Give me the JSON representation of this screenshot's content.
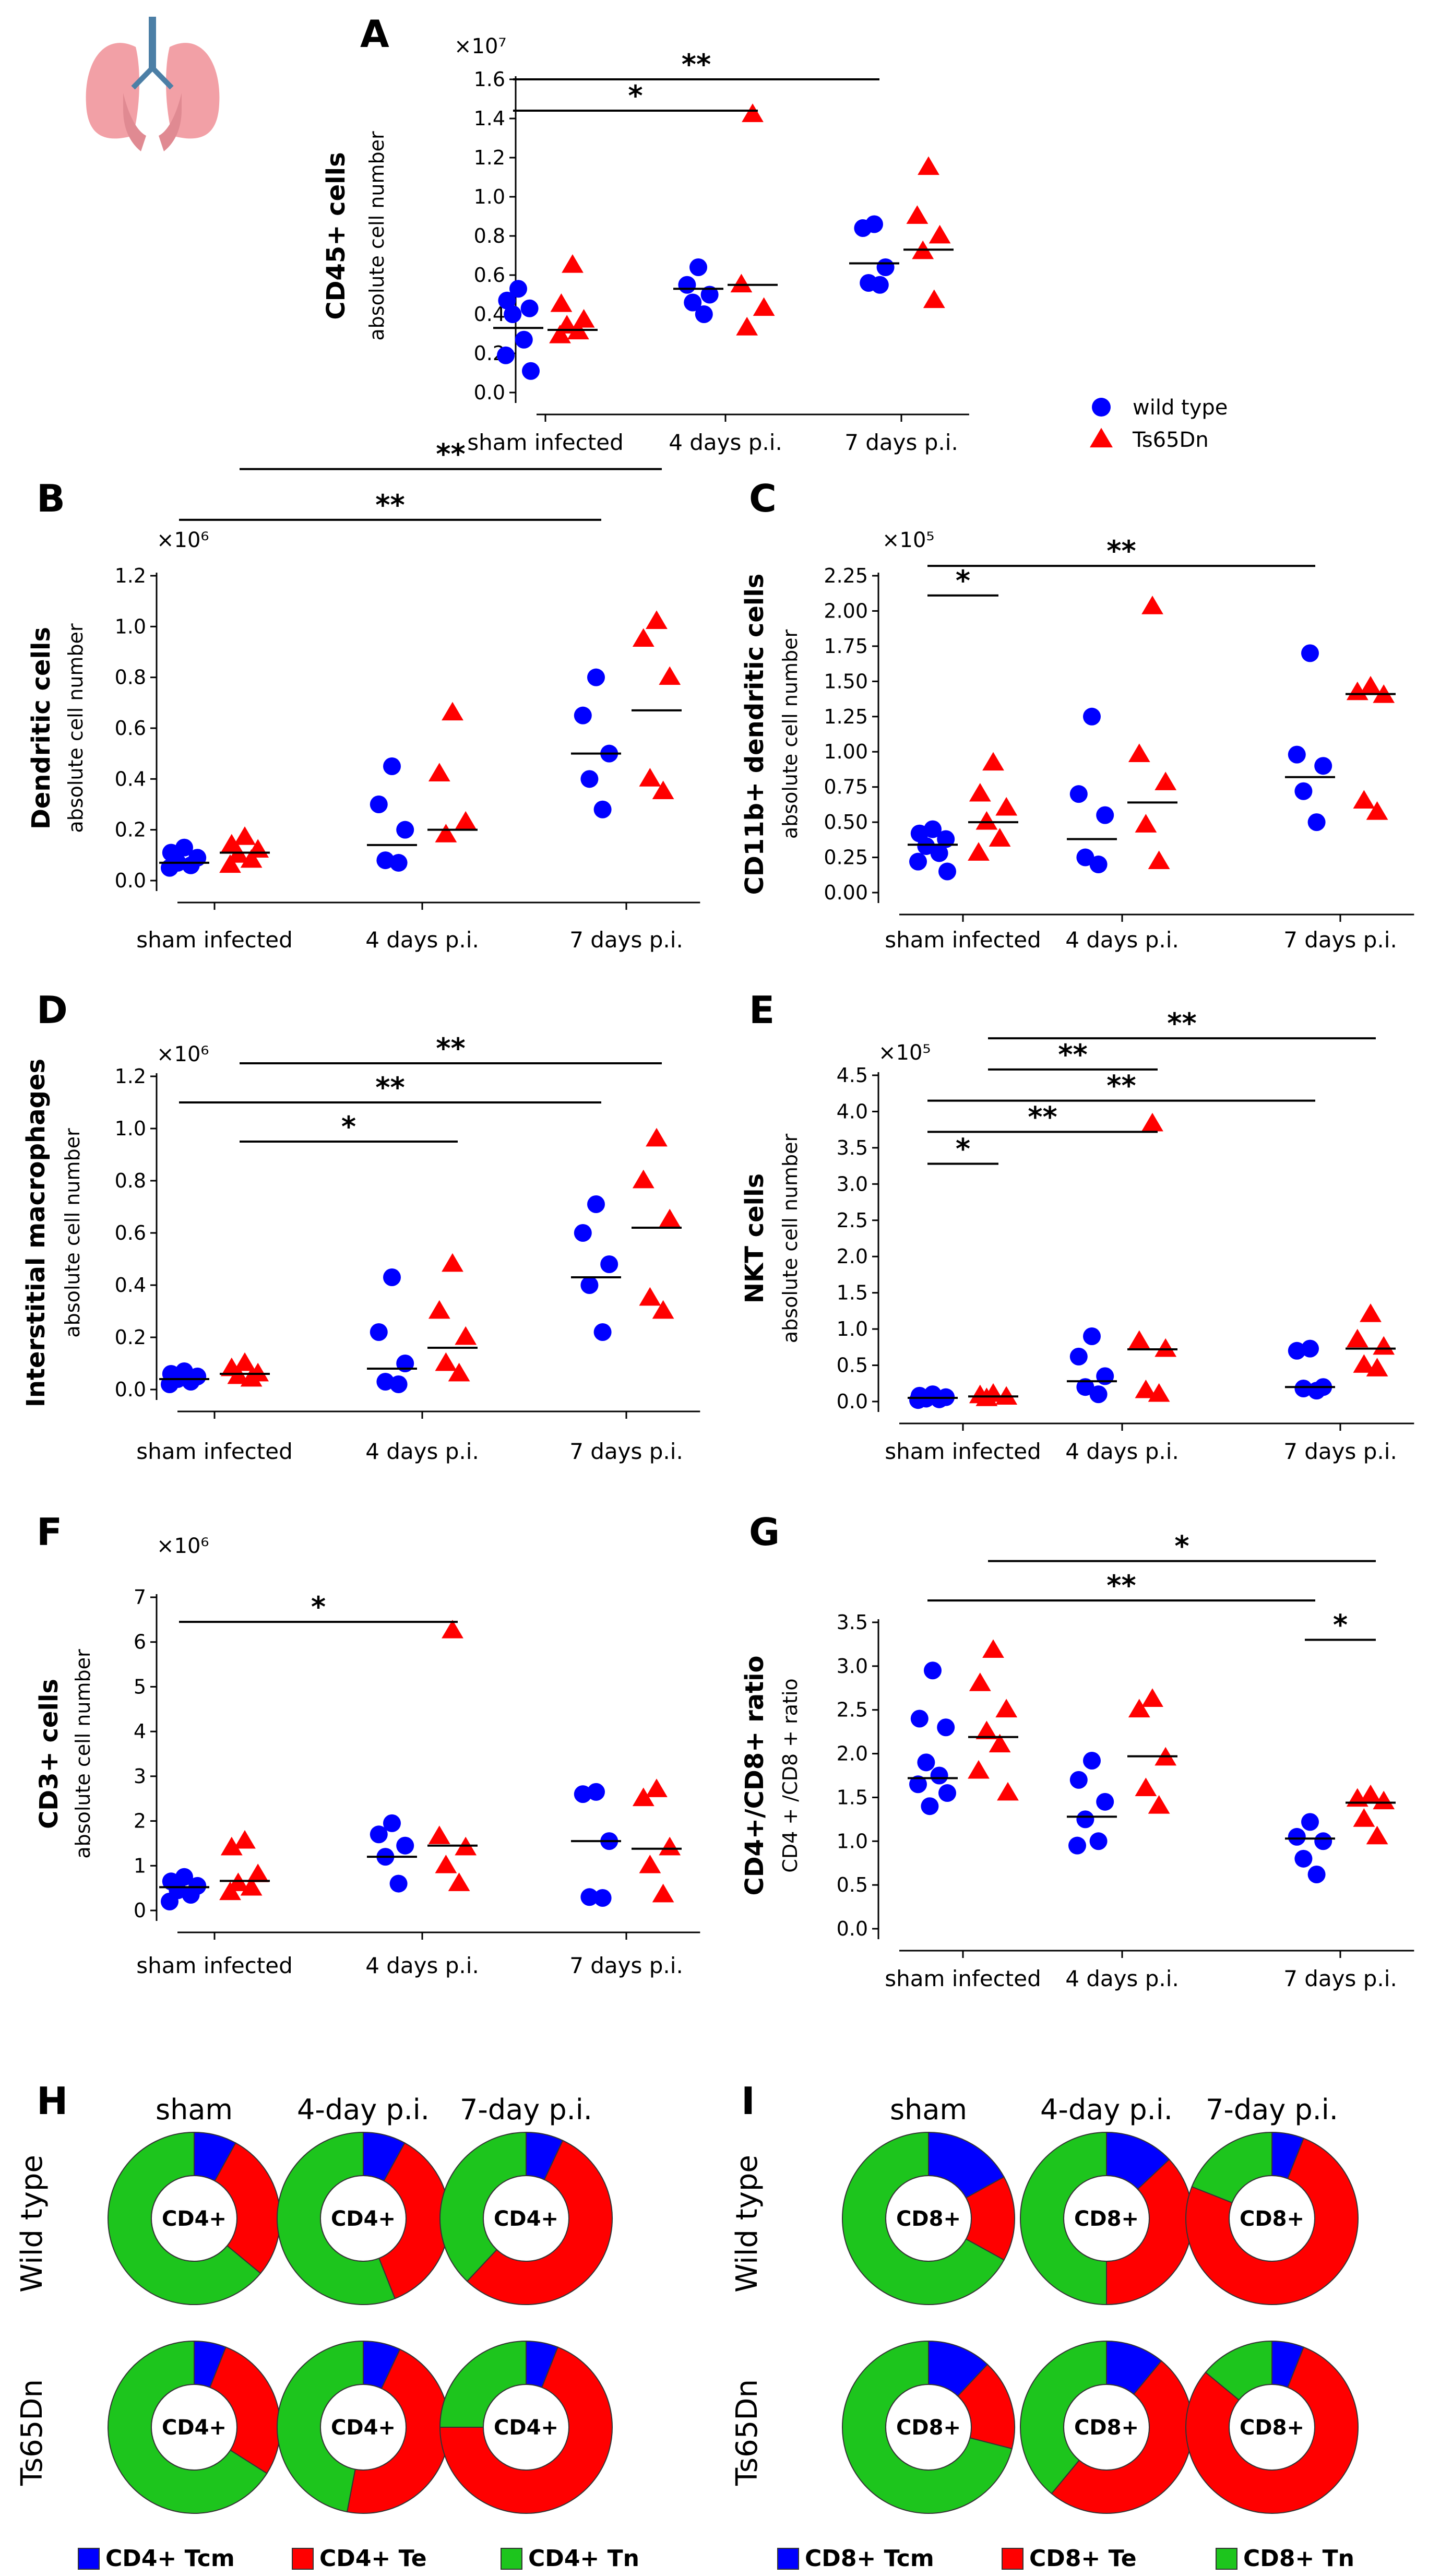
{
  "legend": {
    "entries": [
      {
        "label": "wild type",
        "color": "#0000FF",
        "marker": "circle"
      },
      {
        "label": "Ts65Dn",
        "color": "#FF0000",
        "marker": "triangle"
      }
    ]
  },
  "icons": {
    "organ": "lungs-icon"
  },
  "colors": {
    "wild_type": "#0000FF",
    "ts65dn": "#FF0000",
    "tcm": "#0000FF",
    "te": "#FF0000",
    "tn": "#1DC51D"
  },
  "chart_data": [
    {
      "panel": "A",
      "type": "scatter",
      "ylabel": "CD45+ cells",
      "ysublabel": "absolute cell number",
      "multiplier": "×10⁷",
      "ylim": [
        0,
        1.6
      ],
      "yticks": [
        "0.0",
        "0.2",
        "0.4",
        "0.6",
        "0.8",
        "1.0",
        "1.2",
        "1.4",
        "1.6"
      ],
      "categories": [
        "sham infected",
        "4 days p.i.",
        "7 days p.i."
      ],
      "series": [
        {
          "name": "wild type",
          "values": [
            [
              0.53,
              0.47,
              0.43,
              0.4,
              0.27,
              0.19,
              0.11
            ],
            [
              0.64,
              0.55,
              0.5,
              0.46,
              0.4
            ],
            [
              0.86,
              0.84,
              0.64,
              0.56,
              0.55
            ]
          ],
          "medians": [
            0.33,
            0.53,
            0.66
          ]
        },
        {
          "name": "Ts65Dn",
          "values": [
            [
              0.65,
              0.45,
              0.37,
              0.34,
              0.31,
              0.29
            ],
            [
              1.42,
              0.55,
              0.43,
              0.33
            ],
            [
              1.15,
              0.9,
              0.8,
              0.72,
              0.47
            ]
          ],
          "medians": [
            0.32,
            0.55,
            0.73
          ]
        }
      ],
      "significance": [
        {
          "label": "*",
          "from": 0,
          "to": 3,
          "y": 1.44
        },
        {
          "label": "**",
          "from": 0,
          "to": 4,
          "y": 1.6
        }
      ]
    },
    {
      "panel": "B",
      "type": "scatter",
      "ylabel": "Dendritic cells",
      "ysublabel": "absolute cell number",
      "multiplier": "×10⁶",
      "ylim": [
        0,
        1.2
      ],
      "yticks": [
        "0.0",
        "0.2",
        "0.4",
        "0.6",
        "0.8",
        "1.0",
        "1.2"
      ],
      "categories": [
        "sham infected",
        "4 days p.i.",
        "7 days p.i."
      ],
      "series": [
        {
          "name": "wild type",
          "values": [
            [
              0.13,
              0.11,
              0.09,
              0.07,
              0.06,
              0.05
            ],
            [
              0.45,
              0.3,
              0.2,
              0.08,
              0.07
            ],
            [
              0.8,
              0.65,
              0.5,
              0.4,
              0.28
            ]
          ],
          "medians": [
            0.07,
            0.14,
            0.5
          ]
        },
        {
          "name": "Ts65Dn",
          "values": [
            [
              0.17,
              0.14,
              0.12,
              0.1,
              0.08,
              0.06
            ],
            [
              0.66,
              0.42,
              0.23,
              0.18
            ],
            [
              1.02,
              0.95,
              0.8,
              0.4,
              0.35
            ]
          ],
          "medians": [
            0.11,
            0.2,
            0.67
          ]
        }
      ],
      "significance": [
        {
          "label": "**",
          "from": 0,
          "to": 4,
          "y": 1.42
        },
        {
          "label": "**",
          "from": 1,
          "to": 5,
          "y": 1.62
        }
      ]
    },
    {
      "panel": "C",
      "type": "scatter",
      "ylabel": "CD11b+ dendritic cells",
      "ysublabel": "absolute cell number",
      "multiplier": "×10⁵",
      "ylim": [
        0,
        2.25
      ],
      "yticks": [
        "0.00",
        "0.25",
        "0.50",
        "0.75",
        "1.00",
        "1.25",
        "1.50",
        "1.75",
        "2.00",
        "2.25"
      ],
      "categories": [
        "sham infected",
        "4 days p.i.",
        "7 days p.i."
      ],
      "series": [
        {
          "name": "wild type",
          "values": [
            [
              0.45,
              0.42,
              0.38,
              0.33,
              0.28,
              0.22,
              0.15
            ],
            [
              1.25,
              0.7,
              0.55,
              0.25,
              0.2
            ],
            [
              1.7,
              0.98,
              0.9,
              0.72,
              0.5
            ]
          ],
          "medians": [
            0.34,
            0.38,
            0.82
          ]
        },
        {
          "name": "Ts65Dn",
          "values": [
            [
              0.92,
              0.7,
              0.6,
              0.5,
              0.38,
              0.28
            ],
            [
              2.03,
              0.98,
              0.78,
              0.48,
              0.22
            ],
            [
              1.46,
              1.42,
              1.4,
              0.65,
              0.57
            ]
          ],
          "medians": [
            0.5,
            0.64,
            1.41
          ]
        }
      ],
      "significance": [
        {
          "label": "*",
          "from": 0,
          "to": 1,
          "y": 2.11
        },
        {
          "label": "**",
          "from": 0,
          "to": 4,
          "y": 2.32
        }
      ]
    },
    {
      "panel": "D",
      "type": "scatter",
      "ylabel": "Interstitial macrophages",
      "ysublabel": "absolute cell number",
      "multiplier": "×10⁶",
      "ylim": [
        0,
        1.2
      ],
      "yticks": [
        "0.0",
        "0.2",
        "0.4",
        "0.6",
        "0.8",
        "1.0",
        "1.2"
      ],
      "categories": [
        "sham infected",
        "4 days p.i.",
        "7 days p.i."
      ],
      "series": [
        {
          "name": "wild type",
          "values": [
            [
              0.07,
              0.06,
              0.05,
              0.04,
              0.03,
              0.02
            ],
            [
              0.43,
              0.22,
              0.1,
              0.03,
              0.02
            ],
            [
              0.71,
              0.6,
              0.48,
              0.4,
              0.22
            ]
          ],
          "medians": [
            0.04,
            0.08,
            0.43
          ]
        },
        {
          "name": "Ts65Dn",
          "values": [
            [
              0.1,
              0.08,
              0.06,
              0.05,
              0.04
            ],
            [
              0.48,
              0.3,
              0.2,
              0.1,
              0.06
            ],
            [
              0.96,
              0.8,
              0.65,
              0.35,
              0.3
            ]
          ],
          "medians": [
            0.06,
            0.16,
            0.62
          ]
        }
      ],
      "significance": [
        {
          "label": "*",
          "from": 1,
          "to": 3,
          "y": 0.95
        },
        {
          "label": "**",
          "from": 0,
          "to": 4,
          "y": 1.1
        },
        {
          "label": "**",
          "from": 1,
          "to": 5,
          "y": 1.25
        }
      ]
    },
    {
      "panel": "E",
      "type": "scatter",
      "ylabel": "NKT cells",
      "ysublabel": "absolute cell number",
      "multiplier": "×10⁵",
      "ylim": [
        0,
        4.5
      ],
      "yticks": [
        "0.0",
        "0.5",
        "1.0",
        "1.5",
        "2.0",
        "2.5",
        "3.0",
        "3.5",
        "4.0",
        "4.5"
      ],
      "categories": [
        "sham infected",
        "4 days p.i.",
        "7 days p.i."
      ],
      "series": [
        {
          "name": "wild type",
          "values": [
            [
              0.1,
              0.08,
              0.06,
              0.04,
              0.03,
              0.02
            ],
            [
              0.9,
              0.62,
              0.35,
              0.2,
              0.1
            ],
            [
              0.73,
              0.7,
              0.2,
              0.18,
              0.15
            ]
          ],
          "medians": [
            0.05,
            0.28,
            0.2
          ]
        },
        {
          "name": "Ts65Dn",
          "values": [
            [
              0.1,
              0.08,
              0.06,
              0.04
            ],
            [
              3.83,
              0.83,
              0.72,
              0.15,
              0.1
            ],
            [
              1.2,
              0.85,
              0.75,
              0.5,
              0.45
            ]
          ],
          "medians": [
            0.07,
            0.72,
            0.73
          ]
        }
      ],
      "significance": [
        {
          "label": "*",
          "from": 0,
          "to": 1,
          "y": 3.28
        },
        {
          "label": "**",
          "from": 0,
          "to": 3,
          "y": 3.72
        },
        {
          "label": "**",
          "from": 0,
          "to": 4,
          "y": 4.15
        },
        {
          "label": "**",
          "from": 1,
          "to": 3,
          "y": 4.58
        },
        {
          "label": "**",
          "from": 1,
          "to": 5,
          "y": 5.01
        }
      ]
    },
    {
      "panel": "F",
      "type": "scatter",
      "ylabel": "CD3+ cells",
      "ysublabel": "absolute cell number",
      "multiplier": "×10⁶",
      "ylim": [
        0,
        7
      ],
      "yticks": [
        "0",
        "1",
        "2",
        "3",
        "4",
        "5",
        "6",
        "7"
      ],
      "categories": [
        "sham infected",
        "4 days p.i.",
        "7 days p.i."
      ],
      "series": [
        {
          "name": "wild type",
          "values": [
            [
              0.75,
              0.65,
              0.55,
              0.45,
              0.35,
              0.2
            ],
            [
              1.95,
              1.7,
              1.45,
              1.2,
              0.6
            ],
            [
              2.65,
              2.6,
              1.55,
              0.3,
              0.28
            ]
          ],
          "medians": [
            0.52,
            1.2,
            1.55
          ]
        },
        {
          "name": "Ts65Dn",
          "values": [
            [
              1.55,
              1.4,
              0.8,
              0.6,
              0.5,
              0.4
            ],
            [
              6.25,
              1.65,
              1.4,
              1.0,
              0.6
            ],
            [
              2.7,
              2.5,
              1.4,
              1.0,
              0.35
            ]
          ],
          "medians": [
            0.66,
            1.45,
            1.38
          ]
        }
      ],
      "significance": [
        {
          "label": "*",
          "from": 0,
          "to": 3,
          "y": 6.45
        }
      ]
    },
    {
      "panel": "G",
      "type": "scatter",
      "ylabel": "CD4+/CD8+ ratio",
      "ysublabel": "CD4 + /CD8 + ratio",
      "ylim": [
        0,
        3.5
      ],
      "yticks": [
        "0.0",
        "0.5",
        "1.0",
        "1.5",
        "2.0",
        "2.5",
        "3.0",
        "3.5"
      ],
      "categories": [
        "sham infected",
        "4 days p.i.",
        "7 days p.i."
      ],
      "series": [
        {
          "name": "wild type",
          "values": [
            [
              2.95,
              2.4,
              2.3,
              1.9,
              1.75,
              1.65,
              1.55,
              1.4
            ],
            [
              1.92,
              1.7,
              1.45,
              1.25,
              1.0,
              0.95
            ],
            [
              1.22,
              1.05,
              1.0,
              0.8,
              0.62
            ]
          ],
          "medians": [
            1.72,
            1.28,
            1.03
          ]
        },
        {
          "name": "Ts65Dn",
          "values": [
            [
              3.18,
              2.8,
              2.5,
              2.25,
              2.1,
              1.8,
              1.55
            ],
            [
              2.62,
              2.5,
              1.95,
              1.6,
              1.4
            ],
            [
              1.52,
              1.48,
              1.45,
              1.25,
              1.05
            ]
          ],
          "medians": [
            2.19,
            1.97,
            1.44
          ]
        }
      ],
      "significance": [
        {
          "label": "*",
          "from": 4,
          "to": 5,
          "y": 3.3
        },
        {
          "label": "**",
          "from": 0,
          "to": 4,
          "y": 3.75
        },
        {
          "label": "*",
          "from": 1,
          "to": 5,
          "y": 4.2
        }
      ]
    },
    {
      "panel": "H",
      "type": "pie",
      "donut": true,
      "center_label": "CD4+",
      "columns": [
        "sham",
        "4-day p.i.",
        "7-day p.i."
      ],
      "rows": [
        "Wild type",
        "Ts65Dn"
      ],
      "segment_labels": [
        "CD4+ Tcm",
        "CD4+ Te",
        "CD4+ Tn"
      ],
      "values": [
        [
          [
            8,
            28,
            64
          ],
          [
            8,
            36,
            56
          ],
          [
            7,
            55,
            38
          ]
        ],
        [
          [
            6,
            28,
            66
          ],
          [
            7,
            46,
            47
          ],
          [
            6,
            69,
            25
          ]
        ]
      ]
    },
    {
      "panel": "I",
      "type": "pie",
      "donut": true,
      "center_label": "CD8+",
      "columns": [
        "sham",
        "4-day p.i.",
        "7-day p.i."
      ],
      "rows": [
        "Wild type",
        "Ts65Dn"
      ],
      "segment_labels": [
        "CD8+ Tcm",
        "CD8+ Te",
        "CD8+ Tn"
      ],
      "values": [
        [
          [
            17,
            16,
            67
          ],
          [
            13,
            37,
            50
          ],
          [
            6,
            75,
            19
          ]
        ],
        [
          [
            12,
            17,
            71
          ],
          [
            11,
            50,
            39
          ],
          [
            6,
            80,
            14
          ]
        ]
      ]
    }
  ]
}
